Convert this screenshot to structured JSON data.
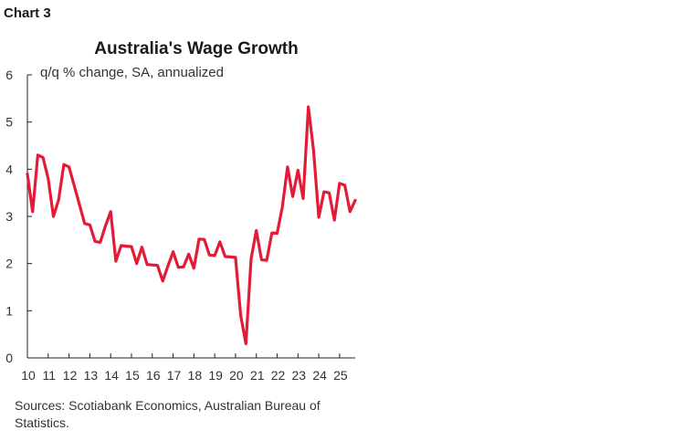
{
  "header": {
    "chart_number": "Chart 3"
  },
  "footer": {
    "source": "Sources: Scotiabank Economics, Australian Bureau of Statistics."
  },
  "chart_data": {
    "type": "line",
    "title": "Australia's Wage Growth",
    "ylabel": "q/q % change, SA, annualized",
    "xlabel": "",
    "ylim": [
      0,
      6
    ],
    "y_ticks": [
      "0",
      "1",
      "2",
      "3",
      "4",
      "5",
      "6"
    ],
    "x_ticks": [
      "10",
      "11",
      "12",
      "13",
      "14",
      "15",
      "16",
      "17",
      "18",
      "19",
      "20",
      "21",
      "22",
      "23",
      "24",
      "25"
    ],
    "x_tick_values": [
      2010,
      2011,
      2012,
      2013,
      2014,
      2015,
      2016,
      2017,
      2018,
      2019,
      2020,
      2021,
      2022,
      2023,
      2024,
      2025
    ],
    "xlim": [
      2010,
      2025.75
    ],
    "grid": false,
    "legend": "none",
    "series_color": "#e31b37",
    "series": [
      {
        "x": [
          2010.0,
          2010.25,
          2010.5,
          2010.75,
          2011.0,
          2011.25,
          2011.5,
          2011.75,
          2012.0,
          2012.25,
          2012.5,
          2012.75,
          2013.0,
          2013.25,
          2013.5,
          2013.75,
          2014.0,
          2014.25,
          2014.5,
          2014.75,
          2015.0,
          2015.25,
          2015.5,
          2015.75,
          2016.0,
          2016.25,
          2016.5,
          2016.75,
          2017.0,
          2017.25,
          2017.5,
          2017.75,
          2018.0,
          2018.25,
          2018.5,
          2018.75,
          2019.0,
          2019.25,
          2019.5,
          2019.75,
          2020.0,
          2020.25,
          2020.5,
          2020.75,
          2021.0,
          2021.25,
          2021.5,
          2021.75,
          2022.0,
          2022.25,
          2022.5,
          2022.75,
          2023.0,
          2023.25,
          2023.5,
          2023.75,
          2024.0,
          2024.25,
          2024.5,
          2024.75,
          2025.0,
          2025.25,
          2025.5,
          2025.75
        ],
        "values": [
          3.9,
          3.1,
          4.3,
          4.25,
          3.8,
          3.0,
          3.35,
          4.1,
          4.05,
          3.65,
          3.25,
          2.85,
          2.82,
          2.47,
          2.45,
          2.8,
          3.1,
          2.05,
          2.38,
          2.37,
          2.36,
          2.0,
          2.35,
          1.98,
          1.97,
          1.96,
          1.63,
          1.95,
          2.25,
          1.92,
          1.93,
          2.2,
          1.9,
          2.52,
          2.51,
          2.18,
          2.17,
          2.46,
          2.15,
          2.14,
          2.13,
          0.9,
          0.3,
          2.1,
          2.7,
          2.08,
          2.07,
          2.65,
          2.64,
          3.2,
          4.05,
          3.42,
          3.98,
          3.38,
          5.32,
          4.4,
          2.98,
          3.52,
          3.5,
          2.92,
          3.7,
          3.66,
          3.1,
          3.34
        ]
      }
    ]
  }
}
